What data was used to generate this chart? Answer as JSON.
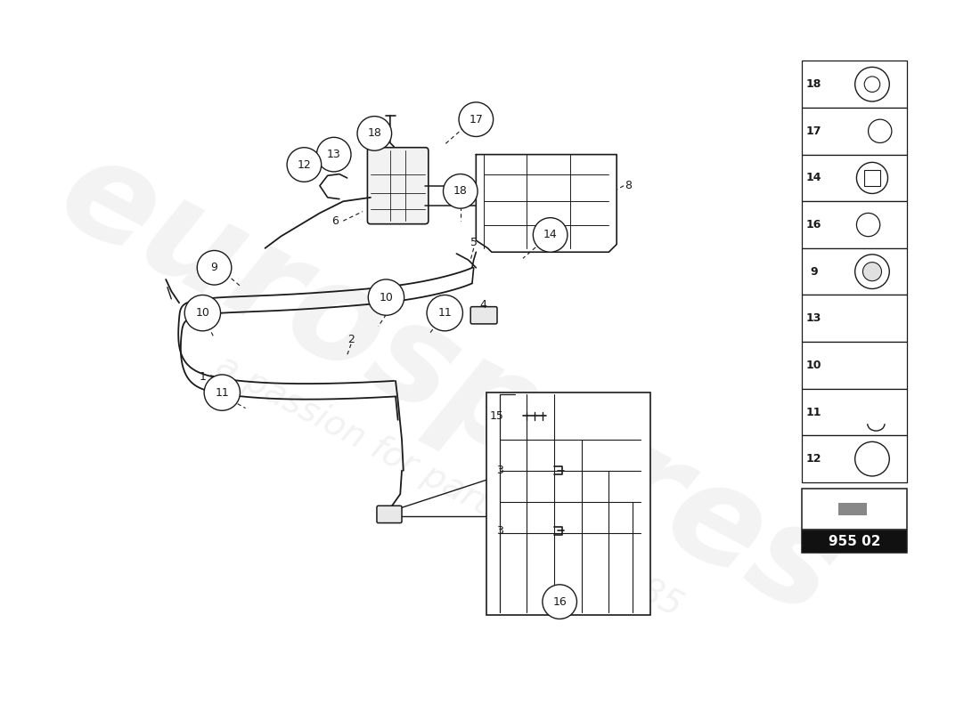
{
  "bg_color": "#ffffff",
  "dc": "#1a1a1a",
  "wm1": "eurospares",
  "wm2": "a passion for parts since 1985",
  "part_code": "955 02",
  "legend_items": [
    18,
    17,
    14,
    16,
    9,
    13,
    10,
    11,
    12
  ],
  "fig_w": 11.0,
  "fig_h": 8.0,
  "dpi": 100
}
